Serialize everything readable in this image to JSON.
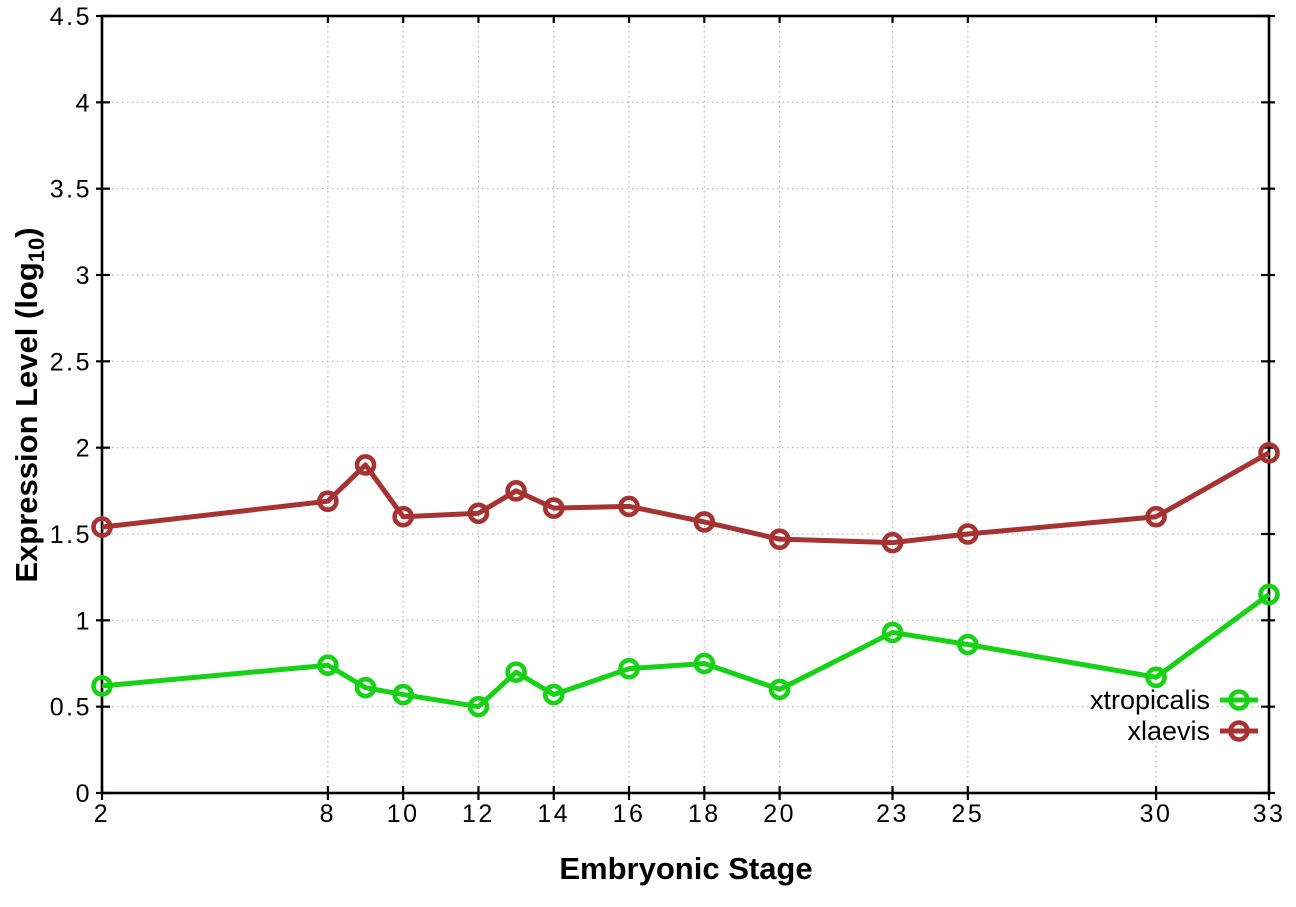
{
  "chart_data": {
    "type": "line",
    "title": "",
    "xlabel": "Embryonic Stage",
    "ylabel": "Expression Level (log10)",
    "ylabel_parts": {
      "main": "Expression Level (log",
      "sub": "10",
      "end": ")"
    },
    "x": [
      2,
      8,
      9,
      10,
      12,
      13,
      14,
      16,
      18,
      20,
      23,
      25,
      30,
      33
    ],
    "series": [
      {
        "name": "xtropicalis",
        "color": "#17d117",
        "values": [
          0.62,
          0.74,
          0.61,
          0.57,
          0.5,
          0.7,
          0.57,
          0.72,
          0.75,
          0.6,
          0.93,
          0.86,
          0.67,
          1.15
        ]
      },
      {
        "name": "xlaevis",
        "color": "#a63232",
        "values": [
          1.54,
          1.69,
          1.9,
          1.6,
          1.62,
          1.75,
          1.65,
          1.66,
          1.57,
          1.47,
          1.45,
          1.5,
          1.6,
          1.97
        ]
      }
    ],
    "x_ticks": {
      "values": [
        2,
        8,
        10,
        12,
        14,
        16,
        18,
        20,
        23,
        25,
        30,
        33
      ],
      "labels": [
        "2",
        "8",
        "10",
        "12",
        "14",
        "16",
        "18",
        "20",
        "23",
        "25",
        "30",
        "33"
      ]
    },
    "y_ticks": {
      "values": [
        0,
        0.5,
        1,
        1.5,
        2,
        2.5,
        3,
        3.5,
        4,
        4.5
      ],
      "labels": [
        "0",
        "0.5",
        "1",
        "1.5",
        "2",
        "2.5",
        "3",
        "3.5",
        "4",
        "4.5"
      ]
    },
    "xlim": [
      2,
      33
    ],
    "ylim": [
      0,
      4.5
    ],
    "grid": true,
    "legend_position": "inside-bottom-right",
    "marker": "open-circle"
  }
}
